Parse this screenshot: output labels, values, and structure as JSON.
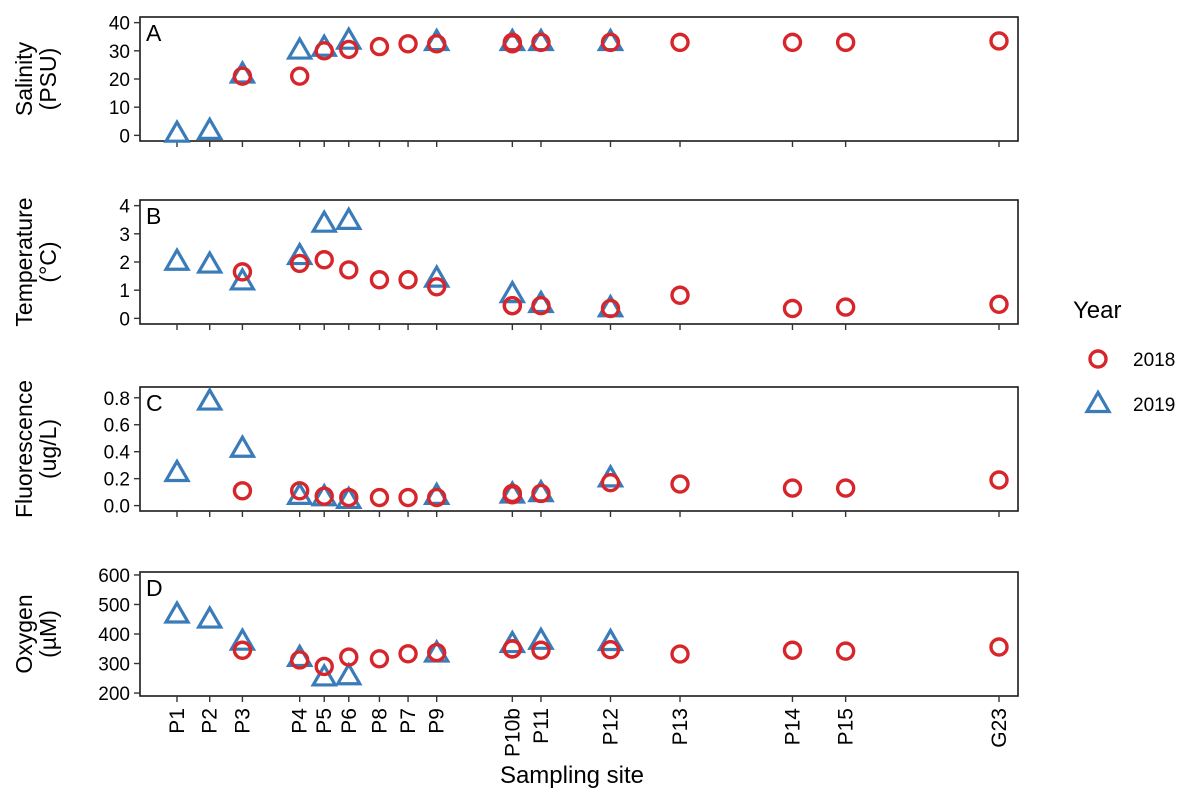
{
  "chart_data": {
    "type": "scatter",
    "xlabel": "Sampling site",
    "sites": [
      "P1",
      "P2",
      "P3",
      "P4",
      "P5",
      "P6",
      "P8",
      "P7",
      "P9",
      "P10b",
      "P11",
      "P12",
      "P13",
      "P14",
      "P15",
      "G23"
    ],
    "site_positions": {
      "P1": 0,
      "P2": 0.8,
      "P3": 1.6,
      "P4": 3.0,
      "P5": 3.6,
      "P6": 4.2,
      "P8": 4.95,
      "P7": 5.65,
      "P9": 6.35,
      "P10b": 8.2,
      "P11": 8.9,
      "P12": 10.6,
      "P13": 12.3,
      "P14": 15.05,
      "P15": 16.35,
      "G23": 20.1
    },
    "legend": {
      "title": "Year",
      "placement": "right",
      "entries": [
        {
          "label": "2018",
          "shape": "circle",
          "color": "#d7262b"
        },
        {
          "label": "2019",
          "shape": "triangle",
          "color": "#3a7bb9"
        }
      ]
    },
    "panels": [
      {
        "id": "salinity",
        "letter": "A",
        "ylabel_lines": [
          "Salinity",
          "(PSU)"
        ],
        "yticks": [
          0,
          10,
          20,
          30,
          40
        ],
        "ylim": [
          -2,
          42
        ],
        "series": [
          {
            "year": "2018",
            "points": [
              {
                "site": "P3",
                "y": 21
              },
              {
                "site": "P4",
                "y": 21
              },
              {
                "site": "P5",
                "y": 30
              },
              {
                "site": "P6",
                "y": 30.5
              },
              {
                "site": "P8",
                "y": 31.5
              },
              {
                "site": "P7",
                "y": 32.5
              },
              {
                "site": "P9",
                "y": 32.5
              },
              {
                "site": "P10b",
                "y": 32.5
              },
              {
                "site": "P10b",
                "y": 33
              },
              {
                "site": "P11",
                "y": 33
              },
              {
                "site": "P12",
                "y": 33
              },
              {
                "site": "P13",
                "y": 33
              },
              {
                "site": "P14",
                "y": 33
              },
              {
                "site": "P15",
                "y": 33
              },
              {
                "site": "G23",
                "y": 33.5
              }
            ]
          },
          {
            "year": "2019",
            "points": [
              {
                "site": "P1",
                "y": 0.5
              },
              {
                "site": "P2",
                "y": 1.5
              },
              {
                "site": "P3",
                "y": 21.5
              },
              {
                "site": "P4",
                "y": 30
              },
              {
                "site": "P5",
                "y": 31
              },
              {
                "site": "P6",
                "y": 33.5
              },
              {
                "site": "P9",
                "y": 33
              },
              {
                "site": "P10b",
                "y": 33
              },
              {
                "site": "P11",
                "y": 33
              },
              {
                "site": "P12",
                "y": 33
              }
            ]
          }
        ]
      },
      {
        "id": "temperature",
        "letter": "B",
        "ylabel_lines": [
          "Temperature",
          "(°C)"
        ],
        "yticks": [
          0,
          1,
          2,
          3,
          4
        ],
        "ylim": [
          -0.2,
          4.2
        ],
        "series": [
          {
            "year": "2018",
            "points": [
              {
                "site": "P3",
                "y": 1.65
              },
              {
                "site": "P4",
                "y": 1.95
              },
              {
                "site": "P5",
                "y": 2.08
              },
              {
                "site": "P6",
                "y": 1.72
              },
              {
                "site": "P8",
                "y": 1.37
              },
              {
                "site": "P7",
                "y": 1.37
              },
              {
                "site": "P9",
                "y": 1.12
              },
              {
                "site": "P10b",
                "y": 0.45
              },
              {
                "site": "P10b",
                "y": 0.45
              },
              {
                "site": "P11",
                "y": 0.45
              },
              {
                "site": "P12",
                "y": 0.35
              },
              {
                "site": "P13",
                "y": 0.82
              },
              {
                "site": "P14",
                "y": 0.35
              },
              {
                "site": "P15",
                "y": 0.4
              },
              {
                "site": "G23",
                "y": 0.5
              }
            ]
          },
          {
            "year": "2019",
            "points": [
              {
                "site": "P1",
                "y": 2.0
              },
              {
                "site": "P2",
                "y": 1.9
              },
              {
                "site": "P3",
                "y": 1.3
              },
              {
                "site": "P4",
                "y": 2.2
              },
              {
                "site": "P5",
                "y": 3.35
              },
              {
                "site": "P6",
                "y": 3.45
              },
              {
                "site": "P9",
                "y": 1.4
              },
              {
                "site": "P10b",
                "y": 0.85
              },
              {
                "site": "P11",
                "y": 0.5
              },
              {
                "site": "P12",
                "y": 0.35
              }
            ]
          }
        ]
      },
      {
        "id": "fluorescence",
        "letter": "C",
        "ylabel_lines": [
          "Fluorescence",
          "(ug/L)"
        ],
        "yticks": [
          0.0,
          0.2,
          0.4,
          0.6,
          0.8
        ],
        "ytick_labels": [
          "0.0",
          "0.2",
          "0.4",
          "0.6",
          "0.8"
        ],
        "ylim": [
          -0.04,
          0.88
        ],
        "series": [
          {
            "year": "2018",
            "points": [
              {
                "site": "P3",
                "y": 0.11
              },
              {
                "site": "P4",
                "y": 0.11
              },
              {
                "site": "P5",
                "y": 0.07
              },
              {
                "site": "P6",
                "y": 0.06
              },
              {
                "site": "P8",
                "y": 0.06
              },
              {
                "site": "P7",
                "y": 0.06
              },
              {
                "site": "P9",
                "y": 0.06
              },
              {
                "site": "P10b",
                "y": 0.08
              },
              {
                "site": "P10b",
                "y": 0.09
              },
              {
                "site": "P11",
                "y": 0.09
              },
              {
                "site": "P12",
                "y": 0.17
              },
              {
                "site": "P13",
                "y": 0.16
              },
              {
                "site": "P14",
                "y": 0.13
              },
              {
                "site": "P15",
                "y": 0.13
              },
              {
                "site": "G23",
                "y": 0.19
              }
            ]
          },
          {
            "year": "2019",
            "points": [
              {
                "site": "P1",
                "y": 0.24
              },
              {
                "site": "P2",
                "y": 0.77
              },
              {
                "site": "P3",
                "y": 0.42
              },
              {
                "site": "P4",
                "y": 0.07
              },
              {
                "site": "P5",
                "y": 0.06
              },
              {
                "site": "P6",
                "y": 0.04
              },
              {
                "site": "P9",
                "y": 0.07
              },
              {
                "site": "P10b",
                "y": 0.08
              },
              {
                "site": "P11",
                "y": 0.09
              },
              {
                "site": "P12",
                "y": 0.2
              }
            ]
          }
        ]
      },
      {
        "id": "oxygen",
        "letter": "D",
        "ylabel_lines": [
          "Oxygen",
          "(µM)"
        ],
        "yticks": [
          200,
          300,
          400,
          500,
          600
        ],
        "ylim": [
          190,
          610
        ],
        "series": [
          {
            "year": "2018",
            "points": [
              {
                "site": "P3",
                "y": 345
              },
              {
                "site": "P4",
                "y": 312
              },
              {
                "site": "P5",
                "y": 290
              },
              {
                "site": "P6",
                "y": 322
              },
              {
                "site": "P8",
                "y": 316
              },
              {
                "site": "P7",
                "y": 333
              },
              {
                "site": "P9",
                "y": 337
              },
              {
                "site": "P10b",
                "y": 350
              },
              {
                "site": "P10b",
                "y": 349
              },
              {
                "site": "P11",
                "y": 345
              },
              {
                "site": "P12",
                "y": 347
              },
              {
                "site": "P13",
                "y": 332
              },
              {
                "site": "P14",
                "y": 345
              },
              {
                "site": "P15",
                "y": 342
              },
              {
                "site": "G23",
                "y": 356
              }
            ]
          },
          {
            "year": "2019",
            "points": [
              {
                "site": "P1",
                "y": 465
              },
              {
                "site": "P2",
                "y": 448
              },
              {
                "site": "P3",
                "y": 373
              },
              {
                "site": "P4",
                "y": 318
              },
              {
                "site": "P5",
                "y": 252
              },
              {
                "site": "P6",
                "y": 256
              },
              {
                "site": "P9",
                "y": 333
              },
              {
                "site": "P10b",
                "y": 365
              },
              {
                "site": "P11",
                "y": 376
              },
              {
                "site": "P12",
                "y": 372
              }
            ]
          }
        ]
      }
    ]
  }
}
